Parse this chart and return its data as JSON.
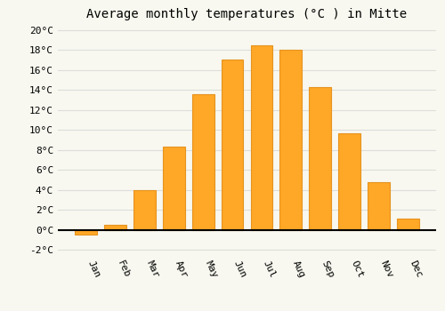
{
  "months": [
    "Jan",
    "Feb",
    "Mar",
    "Apr",
    "May",
    "Jun",
    "Jul",
    "Aug",
    "Sep",
    "Oct",
    "Nov",
    "Dec"
  ],
  "temperatures": [
    -0.5,
    0.5,
    4.0,
    8.3,
    13.6,
    17.0,
    18.5,
    18.0,
    14.3,
    9.7,
    4.8,
    1.1
  ],
  "bar_color": "#FFA726",
  "bar_edge_color": "#E69320",
  "title": "Average monthly temperatures (°C ) in Mitte",
  "ylim": [
    -2.5,
    20.5
  ],
  "yticks": [
    -2,
    0,
    2,
    4,
    6,
    8,
    10,
    12,
    14,
    16,
    18,
    20
  ],
  "background_color": "#F8F8F0",
  "grid_color": "#DDDDDD",
  "title_fontsize": 10,
  "tick_fontsize": 8,
  "font_family": "monospace"
}
